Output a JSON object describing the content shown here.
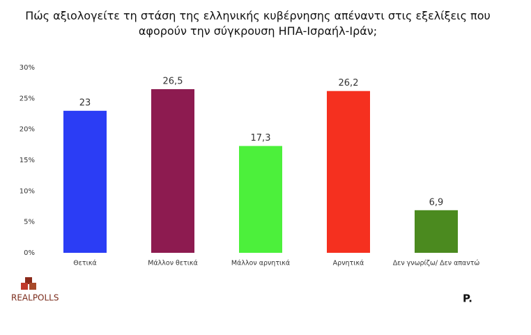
{
  "chart_data": {
    "type": "bar",
    "title": "Πώς αξιολογείτε τη στάση της ελληνικής κυβέρνησης απέναντι στις εξελίξεις που αφορούν την σύγκρουση ΗΠΑ-Ισραήλ-Ιράν;",
    "categories": [
      "Θετικά",
      "Μάλλον θετικά",
      "Μάλλον αρνητικά",
      "Αρνητικά",
      "Δεν γνωρίζω/ Δεν απαντώ"
    ],
    "values": [
      23,
      26.5,
      17.3,
      26.2,
      6.9
    ],
    "value_labels": [
      "23",
      "26,5",
      "17,3",
      "26,2",
      "6,9"
    ],
    "colors": [
      "#2b3df5",
      "#8d1b50",
      "#4cf03b",
      "#f5301f",
      "#4b8a1f"
    ],
    "ylim": [
      0,
      30
    ],
    "yticks": [
      {
        "value": 0,
        "label": "0%"
      },
      {
        "value": 5,
        "label": "5%"
      },
      {
        "value": 10,
        "label": "10%"
      },
      {
        "value": 15,
        "label": "15%"
      },
      {
        "value": 20,
        "label": "20%"
      },
      {
        "value": 25,
        "label": "25%"
      },
      {
        "value": 30,
        "label": "30%"
      }
    ],
    "grid": false
  },
  "logos": {
    "left": "REALPOLLS",
    "right": "P."
  }
}
